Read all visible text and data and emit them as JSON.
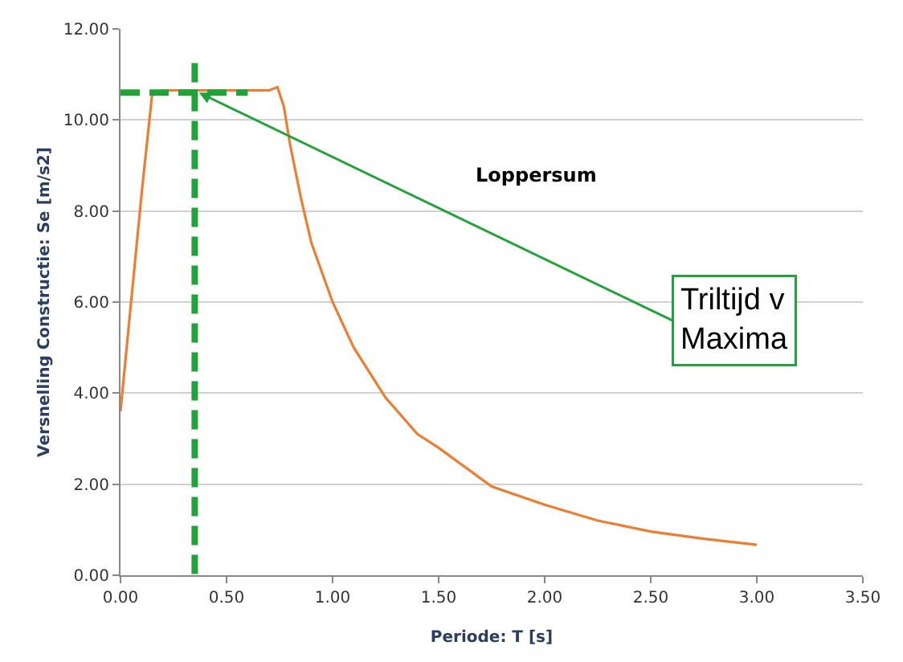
{
  "chart_data": {
    "type": "line",
    "xlabel": "Periode: T [s]",
    "ylabel": "Versnelling Constructie: Se [m/s2]",
    "xlim": [
      0,
      3.5
    ],
    "xticks": [
      {
        "value": 0,
        "label": "0.00"
      },
      {
        "value": 0.5,
        "label": "0.50"
      },
      {
        "value": 1,
        "label": "1.00"
      },
      {
        "value": 1.5,
        "label": "1.50"
      },
      {
        "value": 2,
        "label": "2.00"
      },
      {
        "value": 2.5,
        "label": "2.50"
      },
      {
        "value": 3,
        "label": "3.00"
      },
      {
        "value": 3.5,
        "label": "3.50"
      }
    ],
    "ylim": [
      0,
      12
    ],
    "yticks": [
      {
        "value": 0,
        "label": "0.00"
      },
      {
        "value": 2,
        "label": "2.00"
      },
      {
        "value": 4,
        "label": "4.00"
      },
      {
        "value": 6,
        "label": "6.00"
      },
      {
        "value": 8,
        "label": "8.00"
      },
      {
        "value": 10,
        "label": "10.00"
      },
      {
        "value": 12,
        "label": "12.00"
      }
    ],
    "grid": "y",
    "marker": "none",
    "series": [
      {
        "color": "#ed7d31",
        "line_style": "solid",
        "x": [
          0,
          0.05,
          0.1,
          0.15,
          0.2,
          0.3,
          0.4,
          0.5,
          0.6,
          0.7,
          0.74,
          0.77,
          0.8,
          0.85,
          0.9,
          1.0,
          1.1,
          1.25,
          1.4,
          1.5,
          1.75,
          2.0,
          2.25,
          2.5,
          2.75,
          3.0
        ],
        "values": [
          3.6,
          6.0,
          8.4,
          10.6,
          10.65,
          10.65,
          10.65,
          10.65,
          10.65,
          10.65,
          10.72,
          10.3,
          9.45,
          8.3,
          7.3,
          6.0,
          5.0,
          3.9,
          3.1,
          2.8,
          1.95,
          1.55,
          1.2,
          0.96,
          0.8,
          0.67
        ]
      },
      {
        "color": "#22a33a",
        "line_style": "dashed",
        "x": [
          0.35,
          0.35
        ],
        "values": [
          11.25,
          0
        ]
      },
      {
        "color": "#22a33a",
        "line_style": "dashed",
        "x": [
          0,
          0.6
        ],
        "values": [
          10.6,
          10.6
        ]
      }
    ],
    "annotations": [
      "Loppersum",
      {
        "text": "Triltijd v\nMaxima",
        "x": 0.37,
        "y": 10.6
      }
    ]
  }
}
